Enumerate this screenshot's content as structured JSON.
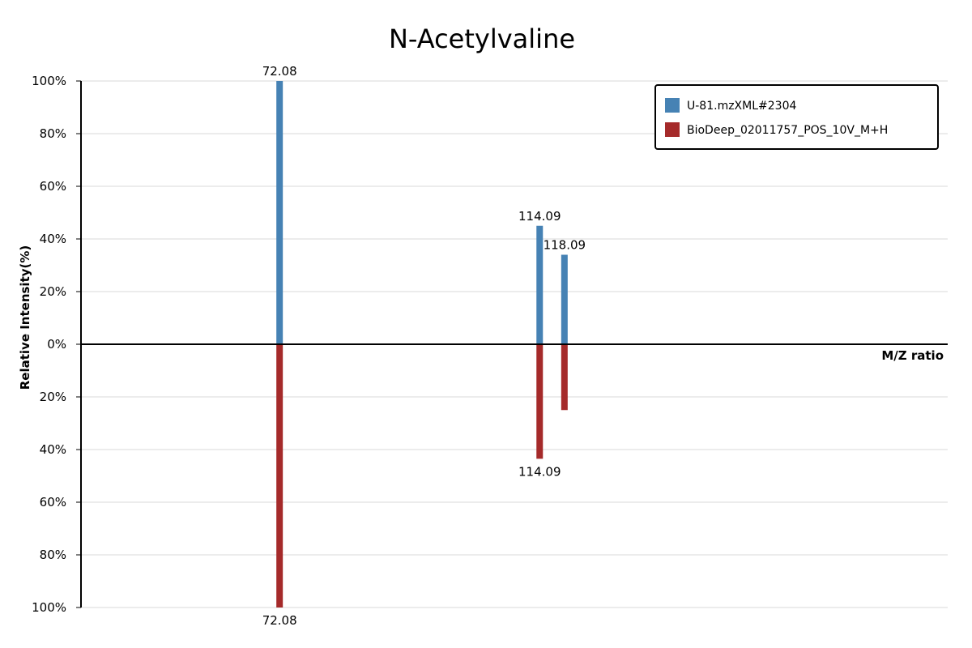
{
  "chart_data": {
    "type": "bar",
    "title": "N-Acetylvaline",
    "xlabel": "M/Z ratio",
    "ylabel": "Relative Intensity(%)",
    "ylim": [
      -100,
      100
    ],
    "xlim": [
      40,
      180
    ],
    "y_ticks": [
      "100%",
      "80%",
      "60%",
      "40%",
      "20%",
      "0%",
      "20%",
      "40%",
      "60%",
      "80%",
      "100%"
    ],
    "grid": true,
    "legend_position": "top-right",
    "series": [
      {
        "name": "U-81.mzXML#2304",
        "color": "#4682b4",
        "direction": "up",
        "peaks": [
          {
            "mz": 72.08,
            "intensity": 100,
            "label": "72.08"
          },
          {
            "mz": 114.09,
            "intensity": 45,
            "label": "114.09"
          },
          {
            "mz": 118.09,
            "intensity": 34,
            "label": "118.09"
          }
        ]
      },
      {
        "name": "BioDeep_02011757_POS_10V_M+H",
        "color": "#a52a2a",
        "direction": "down",
        "peaks": [
          {
            "mz": 72.08,
            "intensity": 100,
            "label": "72.08"
          },
          {
            "mz": 114.09,
            "intensity": 43.5,
            "label": "114.09"
          },
          {
            "mz": 118.09,
            "intensity": 25,
            "label": ""
          }
        ]
      }
    ]
  }
}
